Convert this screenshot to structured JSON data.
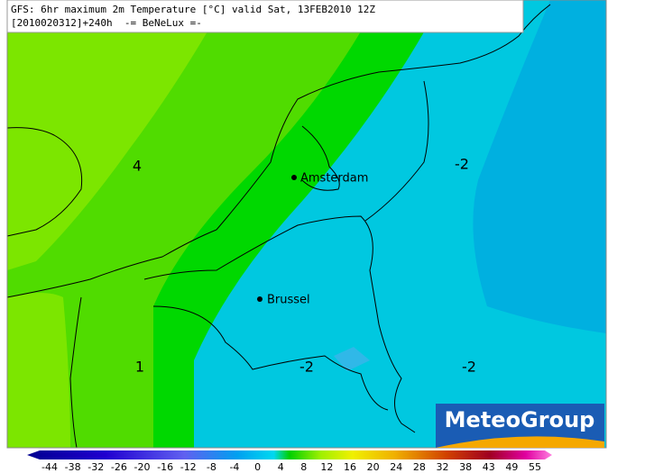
{
  "header": {
    "line1": "GFS: 6hr maximum 2m Temperature [°C] valid Sat, 13FEB2010 12Z",
    "line2": "[2010020312]+240h  -= BeNeLux =-"
  },
  "map": {
    "contour_labels": [
      "4",
      "1",
      "-2",
      "-2",
      "-2"
    ],
    "cities": [
      "Amsterdam",
      "Brussel"
    ]
  },
  "logo": "MeteoGroup",
  "colorbar": {
    "labels": [
      -44,
      -38,
      -32,
      -26,
      -20,
      -16,
      -12,
      -8,
      -4,
      0,
      4,
      8,
      12,
      16,
      20,
      24,
      28,
      32,
      38,
      43,
      49,
      55
    ]
  }
}
